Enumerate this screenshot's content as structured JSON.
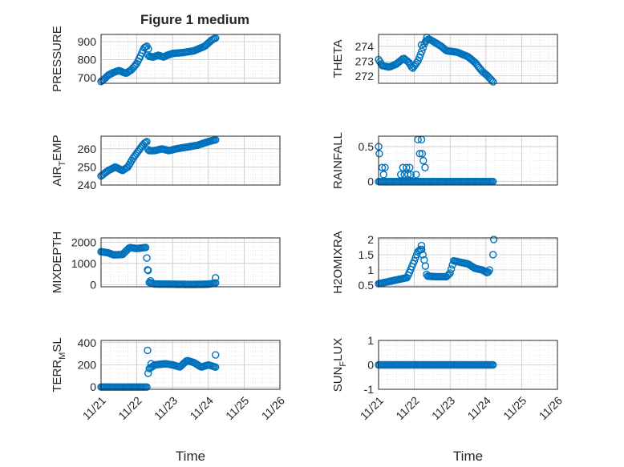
{
  "figure": {
    "title": "Figure 1 medium",
    "marker_color": "#0072BD",
    "grid_color": "#c8c8c8",
    "axis_color": "#262626"
  },
  "chart_data": [
    {
      "type": "scatter",
      "ylabel_main": "PRESSURE",
      "ylabel_sub": "",
      "xlabel": "",
      "xlim": [
        0,
        5
      ],
      "ylim": [
        670,
        940
      ],
      "yticks": [
        700,
        800,
        900
      ],
      "ytick_labels": [
        "700",
        "800",
        "900"
      ],
      "xticks": [
        0,
        1,
        2,
        3,
        4,
        5
      ],
      "xtick_labels": [],
      "knots": [
        [
          0,
          680
        ],
        [
          0.1,
          695
        ],
        [
          0.2,
          715
        ],
        [
          0.35,
          730
        ],
        [
          0.5,
          740
        ],
        [
          0.7,
          725
        ],
        [
          0.85,
          745
        ],
        [
          1.0,
          780
        ],
        [
          1.1,
          820
        ],
        [
          1.2,
          865
        ],
        [
          1.28,
          875
        ],
        [
          1.32,
          820
        ],
        [
          1.45,
          815
        ],
        [
          1.6,
          825
        ],
        [
          1.75,
          815
        ],
        [
          1.85,
          825
        ],
        [
          2.0,
          835
        ],
        [
          2.3,
          840
        ],
        [
          2.6,
          850
        ],
        [
          2.9,
          875
        ],
        [
          3.1,
          910
        ],
        [
          3.2,
          920
        ]
      ],
      "extras": [
        [
          1.32,
          860
        ]
      ]
    },
    {
      "type": "scatter",
      "ylabel_main": "THETA",
      "ylabel_sub": "",
      "xlabel": "",
      "xlim": [
        0,
        5
      ],
      "ylim": [
        271.5,
        274.8
      ],
      "yticks": [
        272,
        273,
        274
      ],
      "ytick_labels": [
        "272",
        "273",
        "274"
      ],
      "xticks": [
        0,
        1,
        2,
        3,
        4,
        5
      ],
      "xtick_labels": [],
      "knots": [
        [
          0,
          273.1
        ],
        [
          0.1,
          272.7
        ],
        [
          0.3,
          272.6
        ],
        [
          0.5,
          272.8
        ],
        [
          0.7,
          273.2
        ],
        [
          0.85,
          272.9
        ],
        [
          0.95,
          272.5
        ],
        [
          1.1,
          273.0
        ],
        [
          1.2,
          273.6
        ],
        [
          1.3,
          274.3
        ],
        [
          1.4,
          274.5
        ],
        [
          1.55,
          274.3
        ],
        [
          1.75,
          274.0
        ],
        [
          1.9,
          273.7
        ],
        [
          2.2,
          273.6
        ],
        [
          2.5,
          273.3
        ],
        [
          2.7,
          272.9
        ],
        [
          2.9,
          272.3
        ],
        [
          3.05,
          272.0
        ],
        [
          3.2,
          271.6
        ]
      ],
      "extras": [
        [
          1.35,
          274.6
        ],
        [
          1.2,
          274.1
        ]
      ]
    },
    {
      "type": "scatter",
      "ylabel_main": "AIR",
      "ylabel_sub": "T",
      "ylabel_tail": "EMP",
      "xlabel": "",
      "xlim": [
        0,
        5
      ],
      "ylim": [
        240,
        267
      ],
      "yticks": [
        240,
        250,
        260
      ],
      "ytick_labels": [
        "240",
        "250",
        "260"
      ],
      "xticks": [
        0,
        1,
        2,
        3,
        4,
        5
      ],
      "xtick_labels": [],
      "knots": [
        [
          0,
          245
        ],
        [
          0.2,
          248
        ],
        [
          0.4,
          250
        ],
        [
          0.6,
          248
        ],
        [
          0.75,
          250
        ],
        [
          0.9,
          255
        ],
        [
          1.05,
          259
        ],
        [
          1.2,
          263
        ],
        [
          1.28,
          264
        ],
        [
          1.32,
          259
        ],
        [
          1.5,
          259
        ],
        [
          1.7,
          260
        ],
        [
          1.9,
          259
        ],
        [
          2.1,
          260
        ],
        [
          2.4,
          261
        ],
        [
          2.7,
          262
        ],
        [
          3.0,
          264
        ],
        [
          3.2,
          265
        ]
      ],
      "extras": []
    },
    {
      "type": "scatter",
      "ylabel_main": "RAINFALL",
      "ylabel_sub": "",
      "xlabel": "",
      "xlim": [
        0,
        5
      ],
      "ylim": [
        -0.05,
        0.65
      ],
      "yticks": [
        0,
        0.5
      ],
      "ytick_labels": [
        "0",
        "0.5"
      ],
      "xticks": [
        0,
        1,
        2,
        3,
        4,
        5
      ],
      "xtick_labels": [],
      "knots": [
        [
          0,
          0
        ],
        [
          3.2,
          0
        ]
      ],
      "extras": [
        [
          0.0,
          0.5
        ],
        [
          0.02,
          0.4
        ],
        [
          0.1,
          0.2
        ],
        [
          0.14,
          0.1
        ],
        [
          0.18,
          0.2
        ],
        [
          0.62,
          0.1
        ],
        [
          0.68,
          0.2
        ],
        [
          0.72,
          0.1
        ],
        [
          0.78,
          0.2
        ],
        [
          0.82,
          0.1
        ],
        [
          0.87,
          0.2
        ],
        [
          0.9,
          0.1
        ],
        [
          1.1,
          0.6
        ],
        [
          1.2,
          0.6
        ],
        [
          1.15,
          0.4
        ],
        [
          1.22,
          0.4
        ],
        [
          1.25,
          0.3
        ],
        [
          1.05,
          0.1
        ],
        [
          1.3,
          0.2
        ]
      ]
    },
    {
      "type": "scatter",
      "ylabel_main": "MIXDEPTH",
      "ylabel_sub": "",
      "xlabel": "",
      "xlim": [
        0,
        5
      ],
      "ylim": [
        -100,
        2200
      ],
      "yticks": [
        0,
        1000,
        2000
      ],
      "ytick_labels": [
        "0",
        "1000",
        "2000"
      ],
      "xticks": [
        0,
        1,
        2,
        3,
        4,
        5
      ],
      "xtick_labels": [],
      "knots": [
        [
          0,
          1550
        ],
        [
          0.2,
          1500
        ],
        [
          0.35,
          1400
        ],
        [
          0.6,
          1420
        ],
        [
          0.8,
          1750
        ],
        [
          1.0,
          1700
        ],
        [
          1.25,
          1750
        ],
        [
          1.35,
          100
        ],
        [
          1.5,
          30
        ],
        [
          2.0,
          20
        ],
        [
          2.5,
          10
        ],
        [
          3.0,
          20
        ],
        [
          3.2,
          80
        ]
      ],
      "extras": [
        [
          1.3,
          700
        ],
        [
          1.38,
          180
        ],
        [
          3.2,
          320
        ]
      ]
    },
    {
      "type": "scatter",
      "ylabel_main": "H2OMIXRA",
      "ylabel_sub": "",
      "xlabel": "",
      "xlim": [
        0,
        5
      ],
      "ylim": [
        0.45,
        2.05
      ],
      "yticks": [
        0.5,
        1,
        1.5,
        2
      ],
      "ytick_labels": [
        "0.5",
        "1",
        "1.5",
        "2"
      ],
      "xticks": [
        0,
        1,
        2,
        3,
        4,
        5
      ],
      "xtick_labels": [],
      "knots": [
        [
          0,
          0.55
        ],
        [
          0.2,
          0.6
        ],
        [
          0.4,
          0.65
        ],
        [
          0.6,
          0.7
        ],
        [
          0.8,
          0.75
        ],
        [
          1.0,
          1.3
        ],
        [
          1.1,
          1.6
        ],
        [
          1.2,
          1.7
        ],
        [
          1.3,
          1.2
        ],
        [
          1.35,
          0.8
        ],
        [
          1.6,
          0.78
        ],
        [
          1.9,
          0.78
        ],
        [
          2.0,
          0.9
        ],
        [
          2.1,
          1.3
        ],
        [
          2.3,
          1.25
        ],
        [
          2.5,
          1.2
        ],
        [
          2.7,
          1.05
        ],
        [
          2.9,
          1.0
        ],
        [
          3.05,
          0.9
        ],
        [
          3.1,
          1.0
        ]
      ],
      "extras": [
        [
          1.2,
          1.8
        ],
        [
          3.2,
          1.5
        ],
        [
          3.22,
          2.0
        ]
      ]
    },
    {
      "type": "scatter",
      "ylabel_main": "TERR",
      "ylabel_sub": "M",
      "ylabel_tail": "SL",
      "xlabel": "Time",
      "xlim": [
        0,
        5
      ],
      "ylim": [
        -20,
        420
      ],
      "yticks": [
        0,
        200,
        400
      ],
      "ytick_labels": [
        "0",
        "200",
        "400"
      ],
      "xticks": [
        0,
        1,
        2,
        3,
        4,
        5
      ],
      "xtick_labels": [
        "11/21",
        "11/22",
        "11/23",
        "11/24",
        "11/25",
        "11/26"
      ],
      "knots": [
        [
          0,
          0
        ],
        [
          1.3,
          0
        ],
        [
          1.32,
          160
        ],
        [
          1.5,
          200
        ],
        [
          1.8,
          210
        ],
        [
          2.0,
          200
        ],
        [
          2.2,
          180
        ],
        [
          2.4,
          240
        ],
        [
          2.6,
          220
        ],
        [
          2.8,
          180
        ],
        [
          3.0,
          200
        ],
        [
          3.2,
          180
        ]
      ],
      "extras": [
        [
          1.3,
          330
        ],
        [
          1.4,
          210
        ],
        [
          3.2,
          290
        ]
      ]
    },
    {
      "type": "scatter",
      "ylabel_main": "SUN",
      "ylabel_sub": "F",
      "ylabel_tail": "LUX",
      "xlabel": "Time",
      "xlim": [
        0,
        5
      ],
      "ylim": [
        -1,
        1
      ],
      "yticks": [
        -1,
        0,
        1
      ],
      "ytick_labels": [
        "-1",
        "0",
        "1"
      ],
      "xticks": [
        0,
        1,
        2,
        3,
        4,
        5
      ],
      "xtick_labels": [
        "11/21",
        "11/22",
        "11/23",
        "11/24",
        "11/25",
        "11/26"
      ],
      "knots": [
        [
          0,
          0
        ],
        [
          3.2,
          0
        ]
      ],
      "extras": []
    }
  ]
}
